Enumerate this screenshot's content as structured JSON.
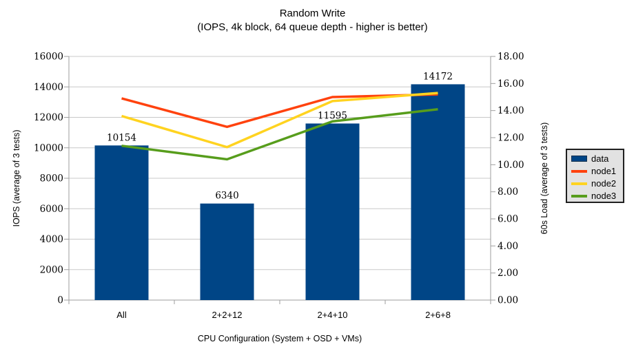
{
  "title": {
    "line1": "Random Write",
    "line2": "(IOPS, 4k block, 64 queue depth - higher is better)"
  },
  "chart_data": {
    "type": "combo-bar-line",
    "categories": [
      "All",
      "2+2+12",
      "2+4+10",
      "2+6+8"
    ],
    "bar_series": {
      "name": "data",
      "axis": "left",
      "color": "#004586",
      "values": [
        10154,
        6340,
        11595,
        14172
      ],
      "data_labels": [
        "10154",
        "6340",
        "11595",
        "14172"
      ]
    },
    "line_series": [
      {
        "name": "node1",
        "axis": "right",
        "color": "#FF420E",
        "values": [
          14.9,
          12.8,
          15.0,
          15.2
        ]
      },
      {
        "name": "node2",
        "axis": "right",
        "color": "#FFD320",
        "values": [
          13.6,
          11.3,
          14.7,
          15.3
        ]
      },
      {
        "name": "node3",
        "axis": "right",
        "color": "#579D1C",
        "values": [
          11.4,
          10.4,
          13.2,
          14.1
        ]
      }
    ],
    "left_axis": {
      "label": "IOPS (average of 3 tests)",
      "min": 0,
      "max": 16000,
      "step": 2000,
      "tick_labels": [
        "0",
        "2000",
        "4000",
        "6000",
        "8000",
        "10000",
        "12000",
        "14000",
        "16000"
      ]
    },
    "right_axis": {
      "label": "60s Load (average of 3 tests)",
      "min": 0,
      "max": 18,
      "step": 2,
      "tick_labels": [
        "0.00",
        "2.00",
        "4.00",
        "6.00",
        "8.00",
        "10.00",
        "12.00",
        "14.00",
        "16.00",
        "18.00"
      ]
    },
    "x_axis": {
      "label": "CPU Configuration (System + OSD + VMs)"
    },
    "legend": {
      "position": "right",
      "entries": [
        {
          "label": "data",
          "type": "box",
          "color": "#004586"
        },
        {
          "label": "node1",
          "type": "line",
          "color": "#FF420E"
        },
        {
          "label": "node2",
          "type": "line",
          "color": "#FFD320"
        },
        {
          "label": "node3",
          "type": "line",
          "color": "#579D1C"
        }
      ]
    },
    "grid": "horizontal-on",
    "colors": {
      "grid": "#c8c8c8",
      "axis": "#9e9e9e",
      "legend_bg": "#e2e2e2",
      "text": "#000000"
    }
  }
}
